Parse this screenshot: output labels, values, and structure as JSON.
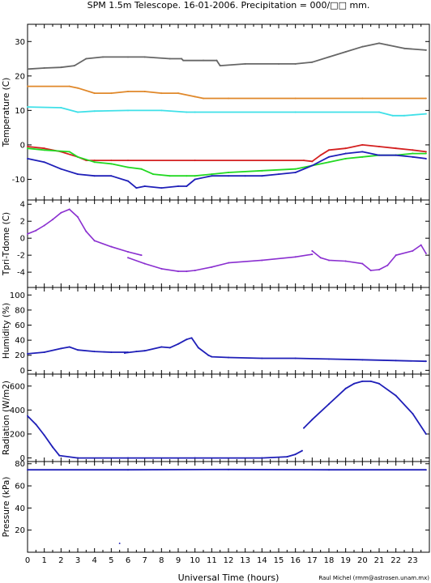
{
  "title": "SPM 1.5m Telescope. 16-01-2006. Precipitation = 000/□□ mm.",
  "xlabel": "Universal Time (hours)",
  "credit": "Raul Michel (rmm@astrosen.unam.mx)",
  "colors": {
    "gray": "#666666",
    "orange": "#e0882a",
    "cyan": "#3fe0e8",
    "red": "#d42020",
    "green": "#22d822",
    "blue": "#1f1fb8",
    "purple": "#8a2fd0"
  },
  "chart_data": [
    {
      "type": "line",
      "ylabel": "Temperature (C)",
      "xlim": [
        0,
        24
      ],
      "ylim": [
        -16,
        35
      ],
      "xticks": [
        "0",
        "1",
        "2",
        "3",
        "4",
        "5",
        "6",
        "7",
        "8",
        "9",
        "10",
        "11",
        "12",
        "13",
        "14",
        "15",
        "16",
        "17",
        "18",
        "19",
        "20",
        "21",
        "22",
        "23"
      ],
      "yticks": [
        -10,
        0,
        10,
        20,
        30
      ],
      "series": [
        {
          "color": "gray",
          "x": [
            0,
            1,
            2,
            2.8,
            3.5,
            4.5,
            6,
            7,
            8.5,
            9.2,
            9.3,
            10.5,
            11.3,
            11.5,
            13,
            15,
            16,
            17,
            18,
            19,
            20,
            21,
            21.5,
            22.5,
            23.8
          ],
          "y": [
            22,
            22.3,
            22.5,
            23,
            25,
            25.5,
            25.5,
            25.5,
            25,
            25,
            24.5,
            24.5,
            24.5,
            23,
            23.5,
            23.5,
            23.5,
            24,
            25.5,
            27,
            28.5,
            29.5,
            29,
            28,
            27.5
          ]
        },
        {
          "color": "orange",
          "x": [
            0,
            2.5,
            3,
            4,
            5,
            6,
            7,
            8,
            9,
            10,
            10.5,
            12,
            16,
            20,
            23.8
          ],
          "y": [
            17,
            17,
            16.5,
            15,
            15,
            15.5,
            15.5,
            15,
            15,
            14,
            13.5,
            13.5,
            13.5,
            13.5,
            13.5
          ]
        },
        {
          "color": "cyan",
          "x": [
            0,
            2,
            3,
            4,
            6,
            8,
            9.5,
            10,
            16,
            21,
            21.8,
            22.5,
            23.8
          ],
          "y": [
            11,
            10.8,
            9.5,
            9.8,
            10,
            10,
            9.5,
            9.5,
            9.5,
            9.5,
            8.5,
            8.5,
            9
          ]
        },
        {
          "color": "red",
          "x": [
            0,
            1,
            2,
            3,
            3.5,
            4,
            5,
            6,
            10,
            16.5,
            17,
            17.5,
            18,
            19,
            20,
            21,
            22,
            23,
            23.8
          ],
          "y": [
            -0.5,
            -1,
            -2,
            -3.5,
            -4.5,
            -4.5,
            -4.5,
            -4.5,
            -4.5,
            -4.5,
            -4.8,
            -3,
            -1.5,
            -1,
            0,
            -0.5,
            -1,
            -1.5,
            -2
          ]
        },
        {
          "color": "green",
          "x": [
            0,
            1,
            2.5,
            3,
            4,
            5,
            6,
            6.8,
            7.5,
            8.5,
            9.5,
            10,
            11,
            12,
            14,
            16,
            17,
            18,
            19,
            20,
            21,
            22,
            23,
            23.8
          ],
          "y": [
            -1,
            -1.5,
            -2,
            -3.5,
            -5,
            -5.5,
            -6.5,
            -7,
            -8.5,
            -9,
            -9,
            -9,
            -8.5,
            -8,
            -7.5,
            -7,
            -6,
            -5,
            -4,
            -3.5,
            -3,
            -3,
            -2.5,
            -2.5
          ]
        },
        {
          "color": "blue",
          "x": [
            0,
            1,
            2,
            3,
            4,
            5,
            6,
            6.5,
            7,
            8,
            9,
            9.5,
            10,
            11,
            12,
            13,
            14,
            15,
            16,
            17,
            18,
            19,
            20,
            21,
            22,
            23,
            23.8
          ],
          "y": [
            -4,
            -5,
            -7,
            -8.5,
            -9,
            -9,
            -10.5,
            -12.5,
            -12,
            -12.5,
            -12,
            -12,
            -10,
            -9,
            -9,
            -9,
            -9,
            -8.5,
            -8,
            -6,
            -3.5,
            -2.5,
            -2,
            -3,
            -3,
            -3.5,
            -4
          ]
        }
      ]
    },
    {
      "type": "scatter",
      "ylabel": "Tpri-Tdome (C)",
      "xlim": [
        0,
        24
      ],
      "ylim": [
        -5.8,
        4.5
      ],
      "yticks": [
        -4,
        -2,
        0,
        2,
        4
      ],
      "series": [
        {
          "color": "purple",
          "x": [
            0,
            0.5,
            1,
            1.5,
            2,
            2.5,
            3,
            3.5,
            4,
            5,
            6,
            6.8
          ],
          "y": [
            0.5,
            0.9,
            1.5,
            2.2,
            3,
            3.4,
            2.5,
            0.8,
            -0.3,
            -1,
            -1.6,
            -2
          ]
        },
        {
          "color": "purple",
          "x": [
            6,
            7,
            8,
            9,
            9.5,
            10,
            11,
            12,
            14,
            16,
            17
          ],
          "y": [
            -2.3,
            -3,
            -3.6,
            -3.9,
            -3.9,
            -3.8,
            -3.4,
            -2.9,
            -2.6,
            -2.2,
            -1.9
          ]
        },
        {
          "color": "purple",
          "x": [
            17,
            17.5,
            18,
            19,
            20,
            20.5,
            21,
            21.5,
            22,
            23,
            23.5,
            23.8
          ],
          "y": [
            -1.5,
            -2.3,
            -2.6,
            -2.7,
            -3,
            -3.8,
            -3.7,
            -3.2,
            -2,
            -1.5,
            -0.8,
            -1.8
          ]
        }
      ]
    },
    {
      "type": "line",
      "ylabel": "Humidity (%)",
      "xlim": [
        0,
        24
      ],
      "ylim": [
        -5,
        110
      ],
      "yticks": [
        0,
        20,
        40,
        60,
        80,
        100
      ],
      "series": [
        {
          "color": "blue",
          "x": [
            0,
            1,
            2,
            2.5,
            3,
            4,
            5,
            6
          ],
          "y": [
            22,
            24,
            29,
            31,
            27,
            25,
            24,
            24
          ]
        },
        {
          "color": "blue",
          "x": [
            5.8,
            6.5,
            7,
            8,
            8.5,
            9,
            9.5,
            9.8,
            10.2,
            10.8,
            11,
            12,
            14,
            16,
            18,
            20,
            22,
            23.8
          ],
          "y": [
            23,
            25,
            26,
            31,
            30,
            35,
            41,
            43,
            30,
            20,
            18,
            17,
            16,
            16,
            15,
            14,
            13,
            12
          ]
        }
      ]
    },
    {
      "type": "line",
      "ylabel": "Radiation (W/m2)",
      "xlim": [
        0,
        24
      ],
      "ylim": [
        -30,
        700
      ],
      "yticks": [
        0,
        200,
        400,
        600
      ],
      "series": [
        {
          "color": "blue",
          "x": [
            0,
            0.5,
            1,
            1.5,
            1.9,
            3,
            6,
            10,
            14,
            15.5,
            16,
            16.4
          ],
          "y": [
            350,
            280,
            190,
            90,
            20,
            0,
            0,
            0,
            0,
            10,
            30,
            60
          ]
        },
        {
          "color": "blue",
          "x": [
            16.5,
            17,
            18,
            19,
            19.5,
            20,
            20.5,
            21,
            22,
            23,
            23.8
          ],
          "y": [
            250,
            320,
            450,
            580,
            620,
            640,
            640,
            620,
            520,
            370,
            200
          ]
        }
      ]
    },
    {
      "type": "line",
      "ylabel": "Pressure (kPa)",
      "xlim": [
        0,
        24
      ],
      "ylim": [
        0,
        82
      ],
      "yticks": [
        20,
        40,
        60,
        80
      ],
      "series": [
        {
          "color": "blue",
          "x": [
            0,
            6,
            12,
            18,
            23.8
          ],
          "y": [
            74.5,
            74.5,
            74.8,
            74.5,
            74.5
          ]
        }
      ],
      "outliers": [
        {
          "x": 5.5,
          "y": 8
        }
      ]
    }
  ]
}
